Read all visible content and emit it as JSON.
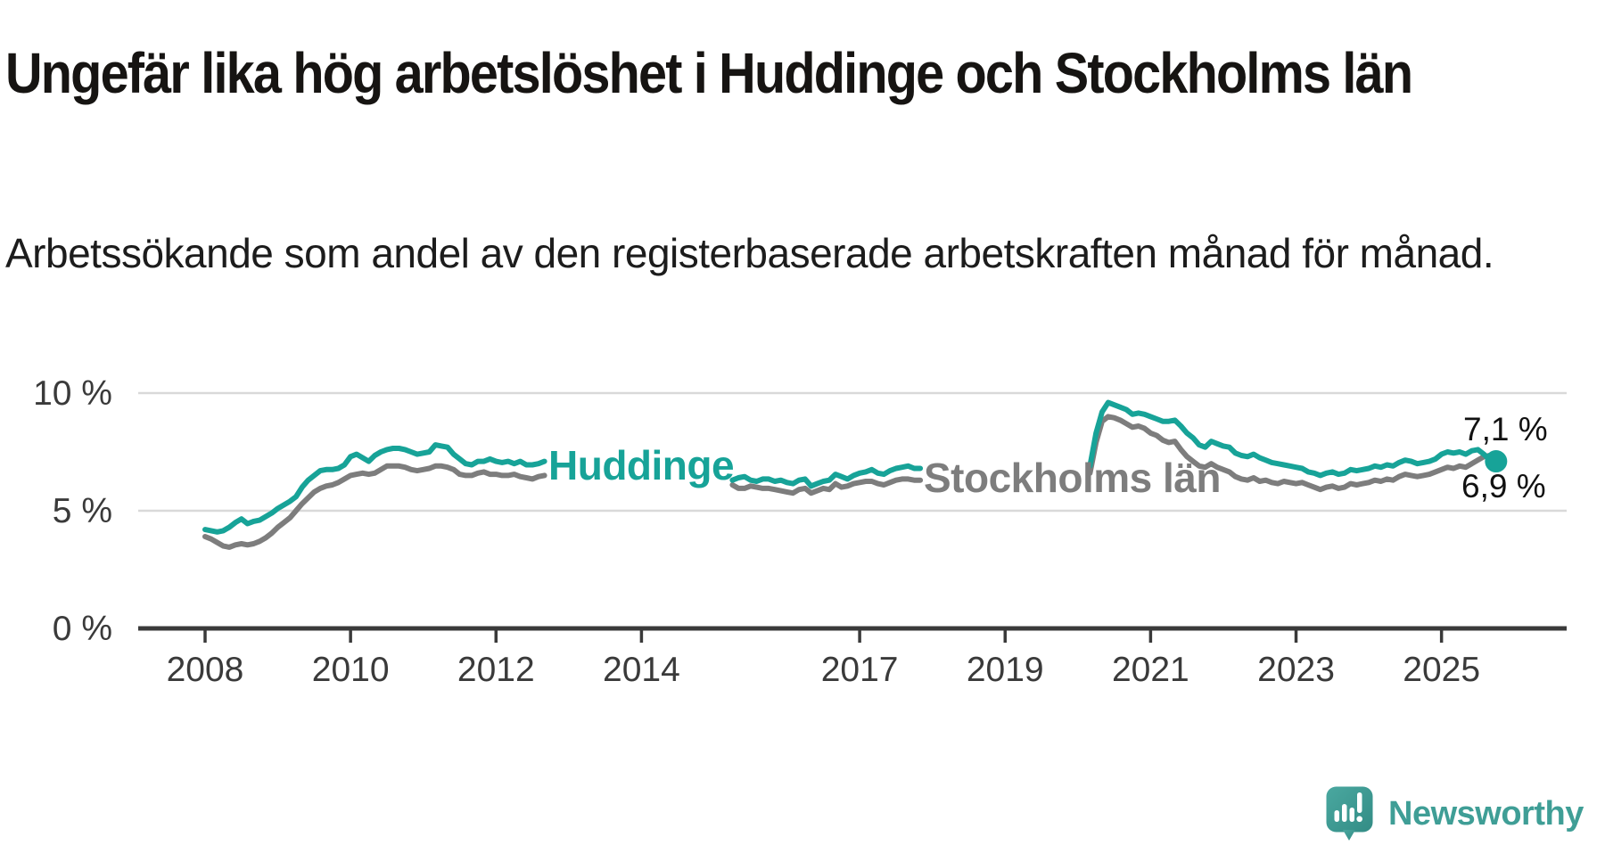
{
  "header": {
    "title": "Ungefär lika hög arbetslöshet i Huddinge och Stockholms län",
    "subtitle": "Arbetssökande som andel av den registerbaserade arbetskraften månad för månad."
  },
  "footer": {
    "logo_text": "Newsworthy"
  },
  "colors": {
    "huddinge_teal": "#17a398",
    "stockholm_gray": "#7d7d7d",
    "axis": "#3a3a3a",
    "grid": "#d9d9d9",
    "tick_text": "#3a3a3a",
    "logo_teal": "#3f9e96",
    "end_label_text": "#111111"
  },
  "chart_data": {
    "type": "line",
    "title": "Ungefär lika hög arbetslöshet i Huddinge och Stockholms län",
    "subtitle": "Arbetssökande som andel av den registerbaserade arbetskraften månad för månad.",
    "frequency": "monthly",
    "x_start": "2008-01",
    "x_end": "2025-10",
    "grid": true,
    "ylim": [
      0,
      10.6
    ],
    "y_ticks": [
      {
        "value": 10,
        "label": "10 %"
      },
      {
        "value": 5,
        "label": "5 %"
      },
      {
        "value": 0,
        "label": "0 %"
      }
    ],
    "x_tick_years": [
      "2008",
      "2010",
      "2012",
      "2014",
      "2017",
      "2019",
      "2021",
      "2023",
      "2025"
    ],
    "end_labels": [
      {
        "series": "Huddinge",
        "text": "7,1 %",
        "value": 7.1
      },
      {
        "series": "Stockholms län",
        "text": "6,9 %",
        "value": 6.9
      }
    ],
    "note": "Lines are interrupted where the inline series labels sit (late 2012–early 2015 and 2018–early 2020); nulls encode those gaps.",
    "series": [
      {
        "name": "Huddinge",
        "color": "#17a398",
        "end_marker": true,
        "values": [
          4.2,
          4.15,
          4.1,
          4.15,
          4.3,
          4.5,
          4.65,
          4.45,
          4.55,
          4.6,
          4.75,
          4.9,
          5.1,
          5.25,
          5.4,
          5.6,
          6.0,
          6.3,
          6.5,
          6.7,
          6.75,
          6.75,
          6.8,
          6.95,
          7.3,
          7.4,
          7.25,
          7.1,
          7.35,
          7.5,
          7.6,
          7.65,
          7.65,
          7.6,
          7.5,
          7.4,
          7.45,
          7.5,
          7.8,
          7.75,
          7.7,
          7.4,
          7.2,
          7.0,
          6.95,
          7.1,
          7.1,
          7.2,
          7.1,
          7.05,
          7.1,
          7.0,
          7.1,
          6.95,
          6.95,
          7.0,
          7.1,
          null,
          null,
          null,
          null,
          null,
          null,
          null,
          null,
          null,
          null,
          null,
          null,
          null,
          null,
          null,
          null,
          null,
          null,
          null,
          null,
          null,
          null,
          null,
          null,
          null,
          null,
          null,
          null,
          null,
          null,
          6.3,
          6.4,
          6.45,
          6.3,
          6.25,
          6.35,
          6.35,
          6.25,
          6.3,
          6.2,
          6.15,
          6.3,
          6.35,
          6.05,
          6.15,
          6.25,
          6.3,
          6.55,
          6.45,
          6.35,
          6.5,
          6.6,
          6.65,
          6.75,
          6.6,
          6.55,
          6.7,
          6.8,
          6.85,
          6.9,
          6.8,
          6.8,
          null,
          null,
          null,
          null,
          null,
          null,
          null,
          null,
          null,
          null,
          null,
          null,
          null,
          null,
          null,
          null,
          null,
          null,
          null,
          null,
          null,
          null,
          null,
          null,
          null,
          null,
          null,
          6.9,
          8.3,
          9.2,
          9.6,
          9.5,
          9.4,
          9.3,
          9.1,
          9.15,
          9.1,
          9.0,
          8.9,
          8.8,
          8.8,
          8.85,
          8.6,
          8.3,
          8.1,
          7.8,
          7.7,
          7.95,
          7.85,
          7.75,
          7.7,
          7.45,
          7.35,
          7.3,
          7.4,
          7.25,
          7.15,
          7.05,
          7.0,
          6.95,
          6.9,
          6.85,
          6.8,
          6.65,
          6.6,
          6.5,
          6.6,
          6.65,
          6.55,
          6.6,
          6.75,
          6.7,
          6.75,
          6.8,
          6.9,
          6.85,
          6.95,
          6.9,
          7.05,
          7.15,
          7.1,
          7.0,
          7.05,
          7.1,
          7.2,
          7.4,
          7.5,
          7.45,
          7.5,
          7.4,
          7.55,
          7.6,
          7.4,
          7.15,
          7.1
        ]
      },
      {
        "name": "Stockholms län",
        "color": "#7d7d7d",
        "end_marker": false,
        "values": [
          3.9,
          3.8,
          3.65,
          3.5,
          3.45,
          3.55,
          3.6,
          3.55,
          3.6,
          3.7,
          3.85,
          4.05,
          4.3,
          4.5,
          4.7,
          5.0,
          5.3,
          5.55,
          5.8,
          5.95,
          6.05,
          6.1,
          6.2,
          6.35,
          6.5,
          6.55,
          6.6,
          6.55,
          6.6,
          6.75,
          6.9,
          6.9,
          6.9,
          6.85,
          6.75,
          6.7,
          6.75,
          6.8,
          6.9,
          6.9,
          6.85,
          6.75,
          6.55,
          6.5,
          6.5,
          6.6,
          6.65,
          6.55,
          6.55,
          6.5,
          6.5,
          6.55,
          6.45,
          6.4,
          6.35,
          6.45,
          6.5,
          null,
          null,
          null,
          null,
          null,
          null,
          null,
          null,
          null,
          null,
          null,
          null,
          null,
          null,
          null,
          null,
          null,
          null,
          null,
          null,
          null,
          null,
          null,
          null,
          null,
          null,
          null,
          null,
          null,
          null,
          6.1,
          5.95,
          5.95,
          6.05,
          6.0,
          5.95,
          5.95,
          5.9,
          5.85,
          5.8,
          5.75,
          5.9,
          5.95,
          5.75,
          5.85,
          5.95,
          5.9,
          6.15,
          6.0,
          6.05,
          6.15,
          6.2,
          6.25,
          6.25,
          6.15,
          6.1,
          6.2,
          6.3,
          6.35,
          6.35,
          6.3,
          6.3,
          null,
          null,
          null,
          null,
          null,
          null,
          null,
          null,
          null,
          null,
          null,
          null,
          null,
          null,
          null,
          null,
          null,
          null,
          null,
          null,
          null,
          null,
          null,
          null,
          null,
          null,
          null,
          6.6,
          7.9,
          8.8,
          9.0,
          8.95,
          8.85,
          8.7,
          8.55,
          8.6,
          8.5,
          8.3,
          8.2,
          8.0,
          7.9,
          7.95,
          7.6,
          7.3,
          7.1,
          6.9,
          6.85,
          7.0,
          6.85,
          6.75,
          6.65,
          6.45,
          6.35,
          6.3,
          6.4,
          6.25,
          6.3,
          6.2,
          6.15,
          6.25,
          6.2,
          6.15,
          6.2,
          6.1,
          6.0,
          5.9,
          6.0,
          6.05,
          5.95,
          6.0,
          6.15,
          6.1,
          6.15,
          6.2,
          6.3,
          6.25,
          6.35,
          6.3,
          6.45,
          6.55,
          6.5,
          6.45,
          6.5,
          6.55,
          6.65,
          6.75,
          6.85,
          6.8,
          6.9,
          6.85,
          7.0,
          7.15,
          7.3,
          7.35,
          6.9
        ]
      }
    ]
  }
}
